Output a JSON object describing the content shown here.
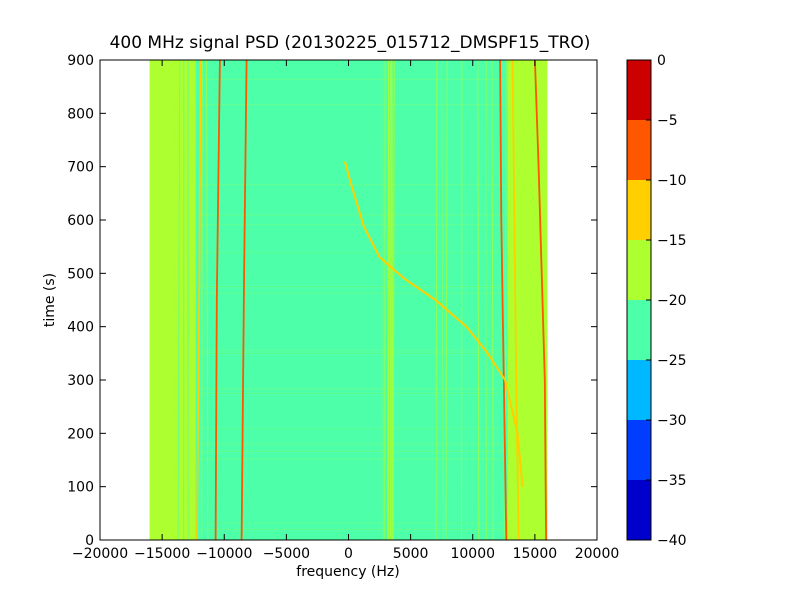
{
  "chart_data": {
    "type": "heatmap",
    "title": "400 MHz signal PSD (20130225_015712_DMSPF15_TRO)",
    "xlabel": "frequency (Hz)",
    "ylabel": "time (s)",
    "xlim": [
      -20000,
      20000
    ],
    "ylim": [
      0,
      900
    ],
    "x_ticks": [
      -20000,
      -15000,
      -10000,
      -5000,
      0,
      5000,
      10000,
      15000,
      20000
    ],
    "x_tick_labels": [
      "−20000",
      "−15000",
      "−10000",
      "−5000",
      "0",
      "5000",
      "10000",
      "15000",
      "20000"
    ],
    "y_ticks": [
      0,
      100,
      200,
      300,
      400,
      500,
      600,
      700,
      800,
      900
    ],
    "y_tick_labels": [
      "0",
      "100",
      "200",
      "300",
      "400",
      "500",
      "600",
      "700",
      "800",
      "900"
    ],
    "data_x_range": [
      -16000,
      16000
    ],
    "data_y_range": [
      0,
      900
    ],
    "background_level_color": "#4dffa9",
    "edge_band_color": "#adff2f",
    "colorbar": {
      "levels": [
        -40,
        -35,
        -30,
        -25,
        -20,
        -15,
        -10,
        -5,
        0
      ],
      "tick_labels": [
        "−40",
        "−35",
        "−30",
        "−25",
        "−20",
        "−15",
        "−10",
        "−5",
        "0"
      ],
      "colors": [
        "#0000cd",
        "#003dff",
        "#00b8ff",
        "#4dffa9",
        "#adff2f",
        "#ffcf00",
        "#ff5600",
        "#cd0000"
      ]
    },
    "bands": [
      {
        "x": [
          -16000,
          -12300
        ],
        "level": "edge"
      },
      {
        "x": [
          12800,
          16000
        ],
        "level": "edge"
      }
    ],
    "traces": [
      {
        "kind": "vertical",
        "color": "#ff5600",
        "points": [
          [
            -8600,
            0
          ],
          [
            -8400,
            500
          ],
          [
            -8200,
            900
          ]
        ]
      },
      {
        "kind": "vertical",
        "color": "#ff5600",
        "points": [
          [
            -10700,
            0
          ],
          [
            -10600,
            450
          ],
          [
            -10350,
            900
          ]
        ]
      },
      {
        "kind": "vertical",
        "color": "#ff5600",
        "points": [
          [
            12700,
            0
          ],
          [
            12500,
            300
          ],
          [
            12300,
            600
          ],
          [
            12200,
            900
          ]
        ]
      },
      {
        "kind": "vertical",
        "color": "#ff5600",
        "points": [
          [
            15900,
            0
          ],
          [
            15800,
            300
          ],
          [
            15300,
            700
          ],
          [
            15000,
            900
          ]
        ]
      },
      {
        "kind": "vertical",
        "color": "#ffcf00",
        "points": [
          [
            13700,
            0
          ],
          [
            13500,
            300
          ],
          [
            13200,
            900
          ]
        ]
      },
      {
        "kind": "vertical",
        "color": "#ffcf00",
        "points": [
          [
            -12200,
            0
          ],
          [
            -12000,
            500
          ],
          [
            -11900,
            900
          ]
        ]
      },
      {
        "kind": "doppler",
        "color": "#ffcf00",
        "points": [
          [
            -300,
            710
          ],
          [
            300,
            660
          ],
          [
            1200,
            590
          ],
          [
            2500,
            530
          ],
          [
            4500,
            490
          ],
          [
            7000,
            450
          ],
          [
            9500,
            400
          ],
          [
            11200,
            350
          ],
          [
            12600,
            300
          ],
          [
            13600,
            200
          ],
          [
            14000,
            100
          ]
        ]
      }
    ]
  }
}
